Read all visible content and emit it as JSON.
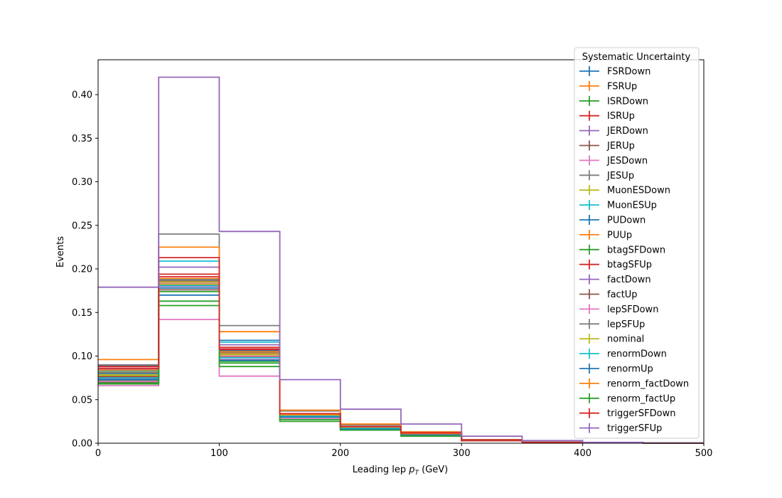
{
  "chart_data": {
    "type": "line",
    "style": "step histogram",
    "xlabel_prefix": "Leading lep ",
    "xlabel_var": "p",
    "xlabel_sub": "T",
    "xlabel_suffix": " (GeV)",
    "ylabel": "Events",
    "xlim": [
      0,
      500
    ],
    "ylim": [
      0,
      0.44
    ],
    "xticks": [
      "0",
      "100",
      "200",
      "300",
      "400",
      "500"
    ],
    "yticks": [
      "0.00",
      "0.05",
      "0.10",
      "0.15",
      "0.20",
      "0.25",
      "0.30",
      "0.35",
      "0.40"
    ],
    "grid": false,
    "legend_title": "Systematic Uncertainty",
    "legend_position": "upper right",
    "bin_edges": [
      0,
      50,
      100,
      150,
      200,
      250,
      300,
      350,
      400,
      450,
      500
    ],
    "series": [
      {
        "name": "FSRDown",
        "color": "#1f77b4",
        "values": [
          0.089,
          0.188,
          0.118,
          0.033,
          0.018,
          0.011,
          0.003,
          0.001,
          0.0005,
          0.0002
        ]
      },
      {
        "name": "FSRUp",
        "color": "#ff7f0e",
        "values": [
          0.082,
          0.182,
          0.103,
          0.034,
          0.019,
          0.012,
          0.004,
          0.001,
          0.0005,
          0.0002
        ]
      },
      {
        "name": "ISRDown",
        "color": "#2ca02c",
        "values": [
          0.072,
          0.163,
          0.094,
          0.031,
          0.017,
          0.01,
          0.003,
          0.001,
          0.0005,
          0.0002
        ]
      },
      {
        "name": "ISRUp",
        "color": "#d62728",
        "values": [
          0.076,
          0.194,
          0.107,
          0.032,
          0.018,
          0.011,
          0.004,
          0.001,
          0.0005,
          0.0002
        ]
      },
      {
        "name": "JERDown",
        "color": "#9467bd",
        "values": [
          0.085,
          0.202,
          0.113,
          0.034,
          0.019,
          0.012,
          0.004,
          0.001,
          0.0005,
          0.0002
        ]
      },
      {
        "name": "JERUp",
        "color": "#8c564b",
        "values": [
          0.07,
          0.176,
          0.099,
          0.03,
          0.017,
          0.01,
          0.003,
          0.001,
          0.0005,
          0.0002
        ]
      },
      {
        "name": "JESDown",
        "color": "#e377c2",
        "values": [
          0.066,
          0.142,
          0.077,
          0.028,
          0.016,
          0.01,
          0.003,
          0.001,
          0.0005,
          0.0002
        ]
      },
      {
        "name": "JESUp",
        "color": "#7f7f7f",
        "values": [
          0.09,
          0.24,
          0.135,
          0.037,
          0.021,
          0.013,
          0.004,
          0.001,
          0.0005,
          0.0002
        ]
      },
      {
        "name": "MuonESDown",
        "color": "#bcbd22",
        "values": [
          0.079,
          0.183,
          0.101,
          0.032,
          0.018,
          0.011,
          0.003,
          0.001,
          0.0005,
          0.0002
        ]
      },
      {
        "name": "MuonESUp",
        "color": "#17becf",
        "values": [
          0.083,
          0.209,
          0.116,
          0.034,
          0.019,
          0.012,
          0.004,
          0.001,
          0.0005,
          0.0002
        ]
      },
      {
        "name": "PUDown",
        "color": "#1f77b4",
        "values": [
          0.08,
          0.17,
          0.106,
          0.032,
          0.018,
          0.011,
          0.003,
          0.001,
          0.0005,
          0.0002
        ]
      },
      {
        "name": "PUUp",
        "color": "#ff7f0e",
        "values": [
          0.096,
          0.225,
          0.128,
          0.038,
          0.022,
          0.013,
          0.004,
          0.001,
          0.0005,
          0.0002
        ]
      },
      {
        "name": "btagSFDown",
        "color": "#2ca02c",
        "values": [
          0.068,
          0.158,
          0.088,
          0.027,
          0.015,
          0.009,
          0.003,
          0.001,
          0.0005,
          0.0002
        ]
      },
      {
        "name": "btagSFUp",
        "color": "#d62728",
        "values": [
          0.088,
          0.213,
          0.11,
          0.033,
          0.019,
          0.011,
          0.004,
          0.001,
          0.0005,
          0.0002
        ]
      },
      {
        "name": "factDown",
        "color": "#9467bd",
        "values": [
          0.074,
          0.18,
          0.096,
          0.031,
          0.017,
          0.01,
          0.003,
          0.001,
          0.0005,
          0.0002
        ]
      },
      {
        "name": "factUp",
        "color": "#8c564b",
        "values": [
          0.077,
          0.186,
          0.102,
          0.032,
          0.018,
          0.011,
          0.003,
          0.001,
          0.0005,
          0.0002
        ]
      },
      {
        "name": "lepSFDown",
        "color": "#e377c2",
        "values": [
          0.071,
          0.184,
          0.1,
          0.031,
          0.017,
          0.01,
          0.003,
          0.001,
          0.0005,
          0.0002
        ]
      },
      {
        "name": "lepSFUp",
        "color": "#7f7f7f",
        "values": [
          0.081,
          0.187,
          0.104,
          0.033,
          0.018,
          0.011,
          0.003,
          0.001,
          0.0005,
          0.0002
        ]
      },
      {
        "name": "nominal",
        "color": "#bcbd22",
        "values": [
          0.078,
          0.185,
          0.102,
          0.032,
          0.018,
          0.011,
          0.003,
          0.001,
          0.0005,
          0.0002
        ]
      },
      {
        "name": "renormDown",
        "color": "#17becf",
        "values": [
          0.075,
          0.181,
          0.098,
          0.031,
          0.017,
          0.01,
          0.003,
          0.001,
          0.0005,
          0.0002
        ]
      },
      {
        "name": "renormUp",
        "color": "#1f77b4",
        "values": [
          0.073,
          0.178,
          0.095,
          0.03,
          0.016,
          0.01,
          0.003,
          0.001,
          0.0005,
          0.0002
        ]
      },
      {
        "name": "renorm_factDown",
        "color": "#ff7f0e",
        "values": [
          0.084,
          0.189,
          0.105,
          0.033,
          0.019,
          0.011,
          0.003,
          0.001,
          0.0005,
          0.0002
        ]
      },
      {
        "name": "renorm_factUp",
        "color": "#2ca02c",
        "values": [
          0.069,
          0.174,
          0.092,
          0.025,
          0.015,
          0.008,
          0.003,
          0.001,
          0.0005,
          0.0002
        ]
      },
      {
        "name": "triggerSFDown",
        "color": "#d62728",
        "values": [
          0.086,
          0.191,
          0.108,
          0.034,
          0.019,
          0.012,
          0.003,
          0.001,
          0.0005,
          0.0002
        ]
      },
      {
        "name": "triggerSFUp",
        "color": "#9467bd",
        "values": [
          0.179,
          0.42,
          0.243,
          0.073,
          0.039,
          0.022,
          0.008,
          0.003,
          0.001,
          0.0003
        ]
      }
    ]
  }
}
